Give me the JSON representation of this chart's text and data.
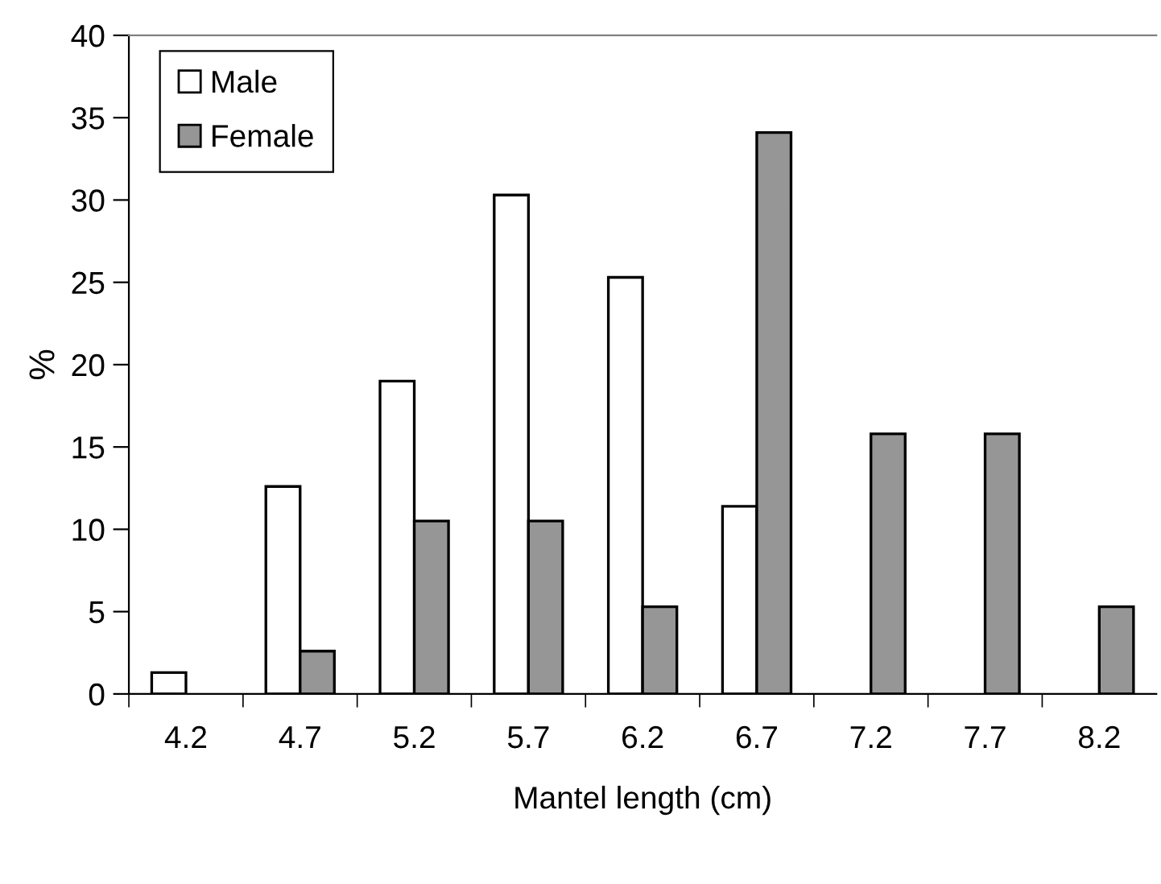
{
  "chart_data": {
    "type": "bar",
    "xlabel": "Mantel length (cm)",
    "ylabel": "%",
    "categories": [
      "4.2",
      "4.7",
      "5.2",
      "5.7",
      "6.2",
      "6.7",
      "7.2",
      "7.7",
      "8.2"
    ],
    "series": [
      {
        "name": "Male",
        "color": "#ffffff",
        "values": [
          1.3,
          12.6,
          19.0,
          30.3,
          25.3,
          11.4,
          null,
          null,
          null
        ]
      },
      {
        "name": "Female",
        "color": "#969696",
        "values": [
          null,
          2.6,
          10.5,
          10.5,
          5.3,
          34.1,
          15.8,
          15.8,
          5.3
        ]
      }
    ],
    "ylim": [
      0,
      40
    ],
    "yticks": [
      0,
      5,
      10,
      15,
      20,
      25,
      30,
      35,
      40
    ],
    "grid": false,
    "legend": "top left"
  }
}
